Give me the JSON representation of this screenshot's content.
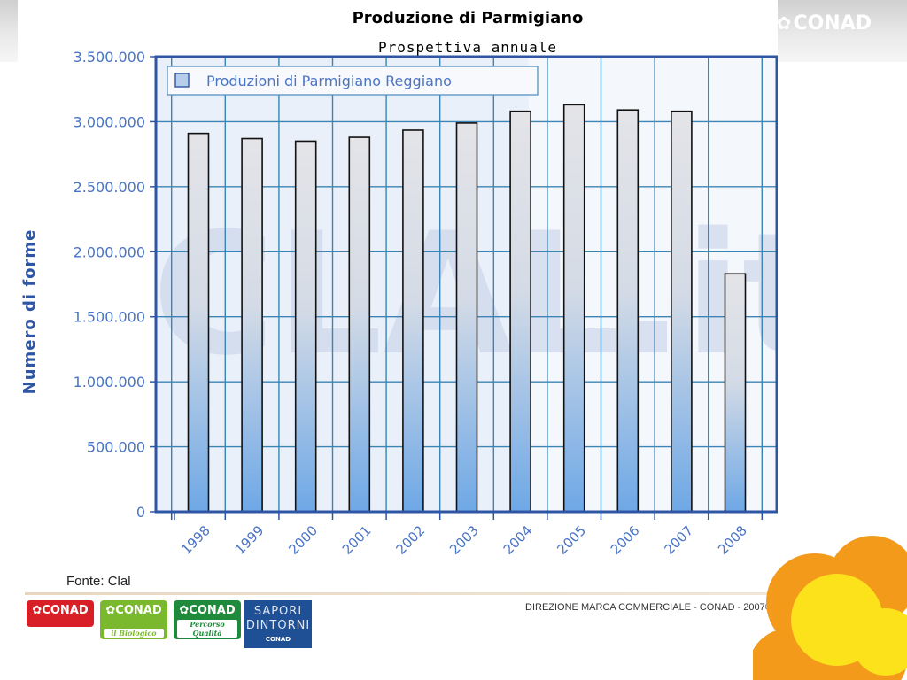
{
  "branding": {
    "corner_logo": "CONAD",
    "footer_text": "DIREZIONE MARCA COMMERCIALE - CONAD - 2007®",
    "logos": [
      {
        "label": "CONAD",
        "sub": "",
        "color": "#d81e27"
      },
      {
        "label": "CONAD",
        "sub": "il Biologico",
        "color": "#7ab82e"
      },
      {
        "label": "CONAD",
        "sub": "Percorso Qualità",
        "color": "#1f8a3c"
      }
    ],
    "sapori": {
      "line1": "SAPORI",
      "line2": "DINTORNI",
      "line3": "CONAD"
    }
  },
  "source": "Fonte: Clal",
  "watermark": "CLAL.it",
  "colors": {
    "axis": "#2f56a5",
    "tick_text": "#4a74c5",
    "plot_bg": "#eaf0f9",
    "grid": "#3b84b4",
    "bar_top": "#e4e4e8",
    "bar_bottom": "#6ea8e6",
    "accent_orange": "#f39a1b",
    "accent_yellow": "#fbe21a"
  },
  "chart_data": {
    "type": "bar",
    "title": "Produzione di Parmigiano",
    "subtitle": "Prospettiva annuale",
    "xlabel": "",
    "ylabel": "Numero di forme",
    "legend": "top-left",
    "grid": true,
    "ylim": [
      0,
      3500000
    ],
    "yticks": [
      "0",
      "500.000",
      "1.000.000",
      "1.500.000",
      "2.000.000",
      "2.500.000",
      "3.000.000",
      "3.500.000"
    ],
    "categories": [
      "1998",
      "1999",
      "2000",
      "2001",
      "2002",
      "2003",
      "2004",
      "2005",
      "2006",
      "2007",
      "2008"
    ],
    "series": [
      {
        "name": "Produzioni di Parmigiano Reggiano",
        "values": [
          2910000,
          2870000,
          2850000,
          2880000,
          2935000,
          2990000,
          3080000,
          3130000,
          3090000,
          3080000,
          1830000
        ]
      }
    ]
  }
}
